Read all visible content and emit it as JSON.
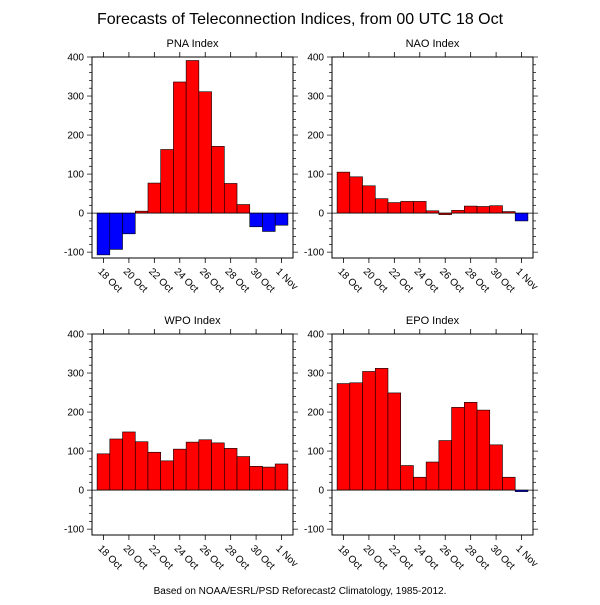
{
  "title": "Forecasts of Teleconnection Indices, from 00 UTC 18 Oct",
  "footer": "Based on NOAA/ESRL/PSD Reforecast2 Climatology, 1985-2012.",
  "colors": {
    "positive": "#ff0000",
    "negative": "#0000ff"
  },
  "chart_data": [
    {
      "type": "bar",
      "title": "PNA Index",
      "ylim": [
        -115,
        400
      ],
      "yticks": [
        -100,
        0,
        100,
        200,
        300,
        400
      ],
      "categories": [
        "18 Oct",
        "19 Oct",
        "20 Oct",
        "21 Oct",
        "22 Oct",
        "23 Oct",
        "24 Oct",
        "25 Oct",
        "26 Oct",
        "27 Oct",
        "28 Oct",
        "29 Oct",
        "30 Oct",
        "31 Oct",
        "1 Nov"
      ],
      "xticklabels": [
        "18 Oct",
        "20 Oct",
        "22 Oct",
        "24 Oct",
        "26 Oct",
        "28 Oct",
        "30 Oct",
        "1 Nov"
      ],
      "values": [
        -107,
        -93,
        -53,
        5,
        77,
        163,
        336,
        391,
        311,
        171,
        76,
        22,
        -35,
        -47,
        -31
      ]
    },
    {
      "type": "bar",
      "title": "NAO Index",
      "ylim": [
        -115,
        400
      ],
      "yticks": [
        -100,
        0,
        100,
        200,
        300,
        400
      ],
      "categories": [
        "18 Oct",
        "19 Oct",
        "20 Oct",
        "21 Oct",
        "22 Oct",
        "23 Oct",
        "24 Oct",
        "25 Oct",
        "26 Oct",
        "27 Oct",
        "28 Oct",
        "29 Oct",
        "30 Oct",
        "31 Oct",
        "1 Nov"
      ],
      "xticklabels": [
        "18 Oct",
        "20 Oct",
        "22 Oct",
        "24 Oct",
        "26 Oct",
        "28 Oct",
        "30 Oct",
        "1 Nov"
      ],
      "values": [
        105,
        93,
        70,
        37,
        27,
        30,
        30,
        6,
        0,
        7,
        18,
        17,
        19,
        4,
        -20
      ]
    },
    {
      "type": "bar",
      "title": "WPO Index",
      "ylim": [
        -115,
        400
      ],
      "yticks": [
        -100,
        0,
        100,
        200,
        300,
        400
      ],
      "categories": [
        "18 Oct",
        "19 Oct",
        "20 Oct",
        "21 Oct",
        "22 Oct",
        "23 Oct",
        "24 Oct",
        "25 Oct",
        "26 Oct",
        "27 Oct",
        "28 Oct",
        "29 Oct",
        "30 Oct",
        "31 Oct",
        "1 Nov"
      ],
      "xticklabels": [
        "18 Oct",
        "20 Oct",
        "22 Oct",
        "24 Oct",
        "26 Oct",
        "28 Oct",
        "30 Oct",
        "1 Nov"
      ],
      "values": [
        93,
        131,
        149,
        124,
        97,
        75,
        105,
        123,
        129,
        121,
        107,
        86,
        61,
        59,
        67
      ]
    },
    {
      "type": "bar",
      "title": "EPO Index",
      "ylim": [
        -115,
        400
      ],
      "yticks": [
        -100,
        0,
        100,
        200,
        300,
        400
      ],
      "categories": [
        "18 Oct",
        "19 Oct",
        "20 Oct",
        "21 Oct",
        "22 Oct",
        "23 Oct",
        "24 Oct",
        "25 Oct",
        "26 Oct",
        "27 Oct",
        "28 Oct",
        "29 Oct",
        "30 Oct",
        "31 Oct",
        "1 Nov"
      ],
      "xticklabels": [
        "18 Oct",
        "20 Oct",
        "22 Oct",
        "24 Oct",
        "26 Oct",
        "28 Oct",
        "30 Oct",
        "1 Nov"
      ],
      "values": [
        273,
        275,
        304,
        312,
        249,
        63,
        33,
        72,
        127,
        212,
        225,
        205,
        116,
        33,
        -3
      ]
    }
  ]
}
